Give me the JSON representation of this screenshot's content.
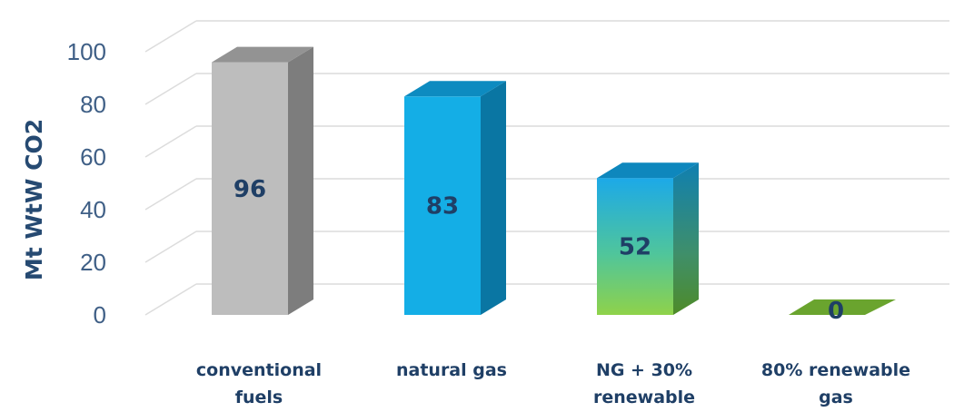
{
  "chart_data": {
    "type": "bar",
    "ylabel": "Mt WtW CO2",
    "ylim": [
      0,
      100
    ],
    "yticks": [
      0,
      20,
      40,
      60,
      80,
      100
    ],
    "grid": true,
    "categories": [
      [
        "conventional",
        "fuels"
      ],
      [
        "natural gas"
      ],
      [
        "NG + 30%",
        "renewable"
      ],
      [
        "80% renewable",
        "gas"
      ]
    ],
    "values": [
      96,
      83,
      52,
      0
    ],
    "data_labels": [
      "96",
      "83",
      "52",
      "0"
    ],
    "colors": {
      "conventional fuels": "#bdbdbd",
      "natural gas": "#14aee6",
      "NG + 30% renewable": "#2faee0",
      "80% renewable gas": "#6aa42e",
      "axis_text": "#3f5f86",
      "grid": "#d9d9d9"
    }
  }
}
